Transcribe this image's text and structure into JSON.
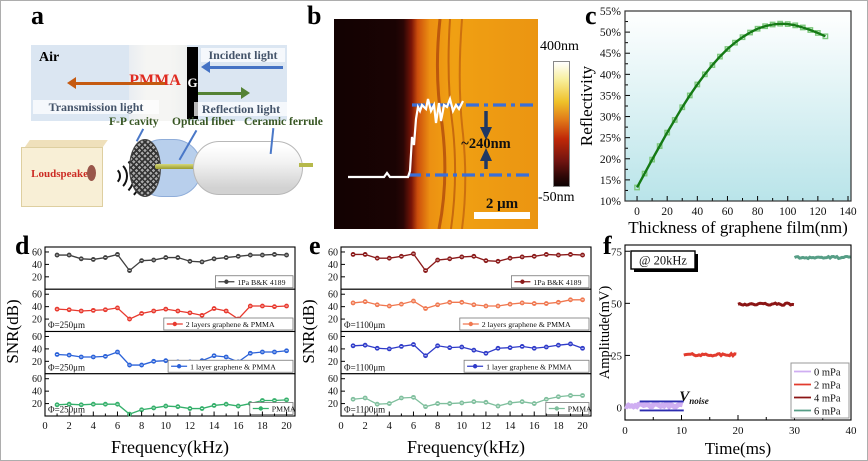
{
  "figure": {
    "panel_labels": {
      "a": "a",
      "b": "b",
      "c": "c",
      "d": "d",
      "e": "e",
      "f": "f"
    }
  },
  "panel_a": {
    "air": "Air",
    "pmma": "PMMA",
    "g": "G",
    "incident": "Incident light",
    "transmission": "Transmission light",
    "reflection": "Reflection light",
    "fp_cavity": "F-P cavity",
    "optical_fiber": "Optical fiber",
    "ceramic_ferrule": "Ceramic ferrule",
    "loudspeaker": "Loudspeaker",
    "colors": {
      "incident": "#4472c4",
      "transmission": "#c55a11",
      "reflection": "#548235",
      "pmma_text": "#e02b20"
    }
  },
  "panel_b": {
    "colorbar_max": "400nm",
    "colorbar_min": "-50nm",
    "step_annotation": "~240nm",
    "scale_bar": "2 μm"
  },
  "chart_data": [
    {
      "id": "c",
      "target": "chart-c",
      "type": "scatter-line",
      "xlabel": "Thickness of graphene film(nm)",
      "ylabel": "Reflectivity",
      "xlim": [
        -8,
        142
      ],
      "ylim": [
        10,
        55
      ],
      "xticks": [
        0,
        20,
        40,
        60,
        80,
        100,
        120,
        140
      ],
      "yticks": [
        10,
        15,
        20,
        25,
        30,
        35,
        40,
        45,
        50,
        55
      ],
      "ytick_suffix": "%",
      "line_color": "#157a15",
      "marker_color": "#7ec87e",
      "bg_top": "#ffffff",
      "bg_bottom": "#b9e4e9",
      "x": [
        0,
        5,
        10,
        15,
        20,
        25,
        30,
        35,
        40,
        45,
        50,
        55,
        60,
        65,
        70,
        75,
        80,
        85,
        90,
        95,
        100,
        105,
        110,
        115,
        120,
        125
      ],
      "y": [
        13.2,
        16.5,
        19.8,
        23.0,
        26.2,
        29.2,
        32.2,
        35.0,
        37.6,
        40.0,
        42.2,
        44.2,
        46.0,
        47.5,
        48.8,
        49.9,
        50.8,
        51.4,
        51.8,
        52.0,
        51.9,
        51.6,
        51.1,
        50.5,
        49.8,
        49.0
      ]
    },
    {
      "id": "d",
      "target": "chart-d",
      "type": "line-subplots",
      "xlabel": "Frequency(kHz)",
      "ylabel": "SNR(dB)",
      "xlim": [
        0,
        20.7
      ],
      "ylim": [
        0,
        68
      ],
      "x": [
        1,
        2,
        3,
        4,
        5,
        6,
        7,
        8,
        9,
        10,
        11,
        12,
        13,
        14,
        15,
        16,
        17,
        18,
        19,
        20
      ],
      "xticks": [
        0,
        2,
        4,
        6,
        8,
        10,
        12,
        14,
        16,
        18,
        20
      ],
      "yticks": [
        20,
        40,
        60
      ],
      "series": [
        {
          "name": "1Pa B&K 4189",
          "color": "#3f3f3f",
          "phi_label": "",
          "values": [
            55,
            55,
            49,
            48,
            51,
            56,
            30,
            46,
            47,
            51,
            51,
            45,
            44,
            49,
            51,
            53,
            55,
            55,
            56,
            55
          ]
        },
        {
          "name": "2 layers graphene & PMMA",
          "color": "#e8392e",
          "phi_label": "Φ=250μm",
          "values": [
            36,
            35,
            33,
            34,
            35,
            38,
            20,
            29,
            33,
            36,
            33,
            30,
            26,
            37,
            33,
            20,
            41,
            41,
            40,
            41
          ]
        },
        {
          "name": "1 layer graphene & PMMA",
          "color": "#2b62d9",
          "phi_label": "Φ=250μm",
          "values": [
            31,
            30,
            27,
            27,
            28,
            35,
            14,
            14,
            20,
            21,
            19,
            19,
            21,
            29,
            27,
            19,
            33,
            35,
            35,
            37
          ]
        },
        {
          "name": "PMMA",
          "color": "#35b06b",
          "phi_label": "Φ=250μm",
          "values": [
            18,
            19,
            18,
            19,
            19,
            19,
            3,
            10,
            13,
            16,
            15,
            12,
            12,
            17,
            19,
            16,
            20,
            25,
            25,
            26
          ]
        }
      ]
    },
    {
      "id": "e",
      "target": "chart-e",
      "type": "line-subplots",
      "xlabel": "Frequency(kHz)",
      "ylabel": "SNR(dB)",
      "xlim": [
        0,
        20.7
      ],
      "ylim": [
        0,
        68
      ],
      "x": [
        1,
        2,
        3,
        4,
        5,
        6,
        7,
        8,
        9,
        10,
        11,
        12,
        13,
        14,
        15,
        16,
        17,
        18,
        19,
        20
      ],
      "xticks": [
        0,
        2,
        4,
        6,
        8,
        10,
        12,
        14,
        16,
        18,
        20
      ],
      "yticks": [
        20,
        40,
        60
      ],
      "series": [
        {
          "name": "1Pa B&K 4189",
          "color": "#8b1a1a",
          "phi_label": "",
          "values": [
            56,
            56,
            50,
            50,
            53,
            57,
            30,
            47,
            49,
            52,
            53,
            46,
            45,
            50,
            52,
            53,
            56,
            55,
            56,
            55
          ]
        },
        {
          "name": "2 layers graphene & PMMA",
          "color": "#f07850",
          "phi_label": "Φ=1100μm",
          "values": [
            46,
            48,
            43,
            41,
            44,
            49,
            37,
            43,
            47,
            47,
            43,
            41,
            41,
            44,
            46,
            45,
            45,
            47,
            51,
            51
          ]
        },
        {
          "name": "1 layer graphene & PMMA",
          "color": "#2f3bc9",
          "phi_label": "Φ=1100μm",
          "values": [
            45,
            46,
            41,
            40,
            44,
            47,
            29,
            45,
            42,
            43,
            38,
            33,
            41,
            42,
            44,
            41,
            43,
            46,
            48,
            41
          ]
        },
        {
          "name": "PMMA",
          "color": "#7fbf9d",
          "phi_label": "Φ=1100μm",
          "values": [
            27,
            29,
            19,
            20,
            29,
            30,
            15,
            20,
            20,
            21,
            23,
            22,
            16,
            21,
            23,
            20,
            27,
            31,
            33,
            33
          ]
        }
      ]
    },
    {
      "id": "f",
      "target": "chart-f",
      "type": "noisy-steps",
      "xlabel": "Time(ms)",
      "ylabel": "Amplitude(mV)",
      "xlim": [
        0,
        40
      ],
      "ylim": [
        -6,
        78
      ],
      "xticks": [
        0,
        10,
        20,
        30,
        40
      ],
      "yticks": [
        0,
        25,
        50,
        75
      ],
      "annotation_box": "@ 20kHz",
      "noise_label_main": "V",
      "noise_label_sub": "noise",
      "edge_line_color": "#2d2db0",
      "edge_lines": [
        {
          "x0": 2.6,
          "x1": 10.4,
          "y": 2.9
        },
        {
          "x0": 2.6,
          "x1": 10.4,
          "y": -1.4
        }
      ],
      "segments": [
        {
          "name": "0 mPa",
          "color": "#cfaef2",
          "x0": 0,
          "x1": 10.4,
          "y": 1.0,
          "thickness": 5,
          "noise": 0.7
        },
        {
          "name": "2 mPa",
          "color": "#e23b2e",
          "x0": 10.4,
          "x1": 20,
          "y": 25.3,
          "thickness": 3,
          "noise": 0.55
        },
        {
          "name": "4 mPa",
          "color": "#8b1515",
          "x0": 20,
          "x1": 30,
          "y": 49.6,
          "thickness": 3,
          "noise": 0.55
        },
        {
          "name": "6 mPa",
          "color": "#569e86",
          "x0": 30,
          "x1": 40,
          "y": 72.0,
          "thickness": 3,
          "noise": 0.5
        }
      ]
    }
  ]
}
